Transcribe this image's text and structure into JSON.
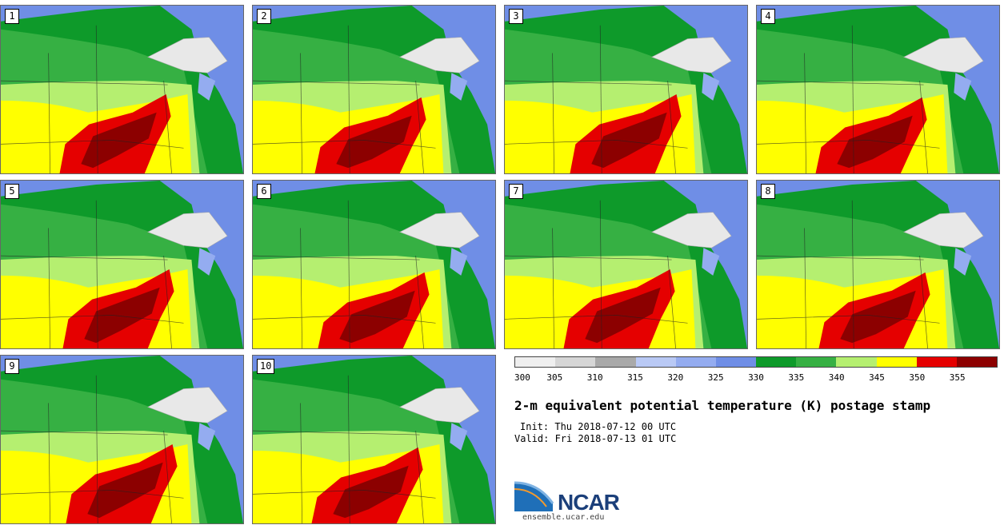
{
  "panels": [
    {
      "label": "1"
    },
    {
      "label": "2"
    },
    {
      "label": "3"
    },
    {
      "label": "4"
    },
    {
      "label": "5"
    },
    {
      "label": "6"
    },
    {
      "label": "7"
    },
    {
      "label": "8"
    },
    {
      "label": "9"
    },
    {
      "label": "10"
    }
  ],
  "colorbar": {
    "ticks": [
      "300",
      "305",
      "310",
      "315",
      "320",
      "325",
      "330",
      "335",
      "340",
      "345",
      "350",
      "355"
    ],
    "colors": [
      "#efefef",
      "#d6d6d6",
      "#a9a9a9",
      "#b9c9f5",
      "#94acf0",
      "#6f8ee6",
      "#0e9a2a",
      "#36b043",
      "#b5ef70",
      "#ffff00",
      "#e50000",
      "#8c0000"
    ]
  },
  "title": "2-m equivalent potential temperature (K) postage stamp",
  "init": "Init: Thu 2018-07-12 00 UTC",
  "valid": "Valid: Fri 2018-07-13 01 UTC",
  "logo": {
    "name": "NCAR",
    "url": "ensemble.ucar.edu"
  }
}
